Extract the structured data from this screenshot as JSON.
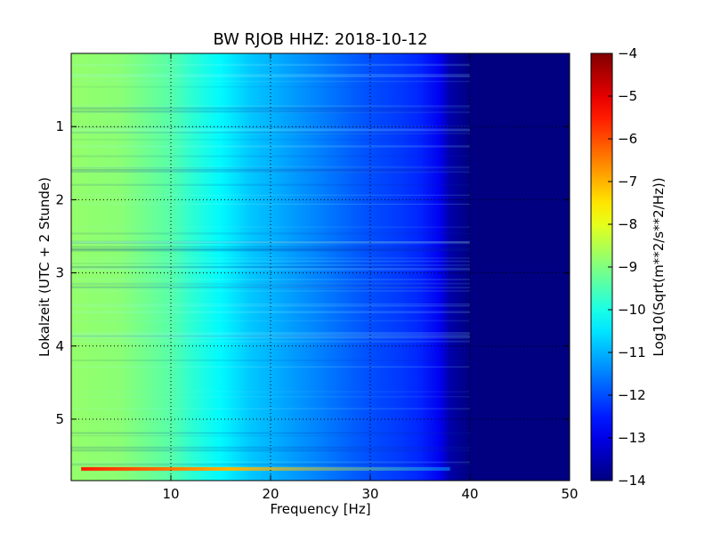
{
  "chart_data": {
    "type": "heatmap",
    "title": "BW RJOB HHZ: 2018-10-12",
    "xlabel": "Frequency [Hz]",
    "ylabel": "Lokalzeit (UTC + 2 Stunde)",
    "xlim": [
      0,
      50
    ],
    "ylim": [
      5.84,
      0
    ],
    "x_ticks": [
      10,
      20,
      30,
      40,
      50
    ],
    "y_ticks": [
      1,
      2,
      3,
      4,
      5
    ],
    "grid": true,
    "colormap": "jet",
    "colorbar": {
      "label": "Log10(Sqrt(m**2/s**2/Hz))",
      "range": [
        -14,
        -4
      ],
      "ticks": [
        -4,
        -5,
        -6,
        -7,
        -8,
        -9,
        -10,
        -11,
        -12,
        -13,
        -14
      ]
    },
    "frequency_profile": {
      "frequency_hz": [
        0,
        5,
        8,
        10,
        12,
        15,
        18,
        20,
        22,
        25,
        28,
        30,
        33,
        35,
        37,
        38,
        40,
        50
      ],
      "log10_amplitude": [
        -8.8,
        -8.9,
        -9.2,
        -9.4,
        -9.8,
        -10.3,
        -10.8,
        -11.0,
        -11.2,
        -11.5,
        -11.8,
        -12.0,
        -12.2,
        -12.4,
        -12.9,
        -13.6,
        -14.0,
        -14.0
      ]
    },
    "bright_events": [
      {
        "time_h": 5.68,
        "frequency_range_hz": [
          1,
          38
        ],
        "log10_amplitude": -7.0
      }
    ]
  }
}
